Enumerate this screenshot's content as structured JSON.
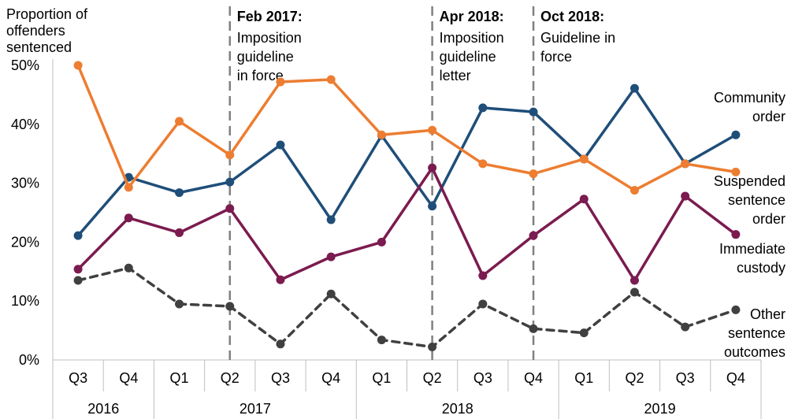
{
  "chart_data": {
    "type": "line",
    "ylabel": "Proportion of offenders sentenced",
    "ylabel_lines": [
      "Proportion of",
      "offenders",
      "sentenced"
    ],
    "ylim": [
      0,
      50
    ],
    "yticks": [
      0,
      10,
      20,
      30,
      40,
      50
    ],
    "ytick_labels": [
      "0%",
      "10%",
      "20%",
      "30%",
      "40%",
      "50%"
    ],
    "grid": false,
    "categories": [
      "Q3",
      "Q4",
      "Q1",
      "Q2",
      "Q3",
      "Q4",
      "Q1",
      "Q2",
      "Q3",
      "Q4",
      "Q1",
      "Q2",
      "Q3",
      "Q4"
    ],
    "year_groups": [
      {
        "label": "2016",
        "span": 2
      },
      {
        "label": "2017",
        "span": 4
      },
      {
        "label": "2018",
        "span": 4
      },
      {
        "label": "2019",
        "span": 4
      }
    ],
    "series": [
      {
        "name": "Community order",
        "label_lines": [
          "Community",
          "order"
        ],
        "color": "#1F4E79",
        "dash": false,
        "values": [
          21.1,
          31.0,
          28.4,
          30.2,
          36.5,
          23.8,
          38.1,
          26.1,
          42.8,
          42.1,
          34.1,
          46.1,
          33.3,
          38.2
        ]
      },
      {
        "name": "Suspended sentence order",
        "label_lines": [
          "Suspended",
          "sentence",
          "order"
        ],
        "color": "#ED7D31",
        "dash": false,
        "values": [
          50.0,
          29.3,
          40.5,
          34.8,
          47.2,
          47.6,
          38.2,
          39.0,
          33.3,
          31.6,
          34.1,
          28.8,
          33.3,
          31.9
        ]
      },
      {
        "name": "Immediate custody",
        "label_lines": [
          "Immediate",
          "custody"
        ],
        "color": "#7B1B4F",
        "dash": false,
        "values": [
          15.4,
          24.1,
          21.6,
          25.7,
          13.6,
          17.5,
          20.0,
          32.6,
          14.3,
          21.1,
          27.3,
          13.5,
          27.8,
          21.3
        ]
      },
      {
        "name": "Other sentence outcomes",
        "label_lines": [
          "Other",
          "sentence",
          "outcomes"
        ],
        "color": "#404040",
        "dash": true,
        "values": [
          13.5,
          15.6,
          9.5,
          9.1,
          2.7,
          11.2,
          3.4,
          2.2,
          9.5,
          5.3,
          4.6,
          11.5,
          5.6,
          8.5
        ]
      }
    ],
    "annotations": [
      {
        "after_index": 3,
        "title": "Feb 2017:",
        "lines": [
          "Imposition",
          "guideline",
          "in force"
        ]
      },
      {
        "after_index": 7,
        "title": "Apr 2018:",
        "lines": [
          "Imposition",
          "guideline",
          "letter"
        ]
      },
      {
        "after_index": 9,
        "title": "Oct 2018:",
        "lines": [
          "Guideline in",
          "force"
        ]
      }
    ]
  }
}
